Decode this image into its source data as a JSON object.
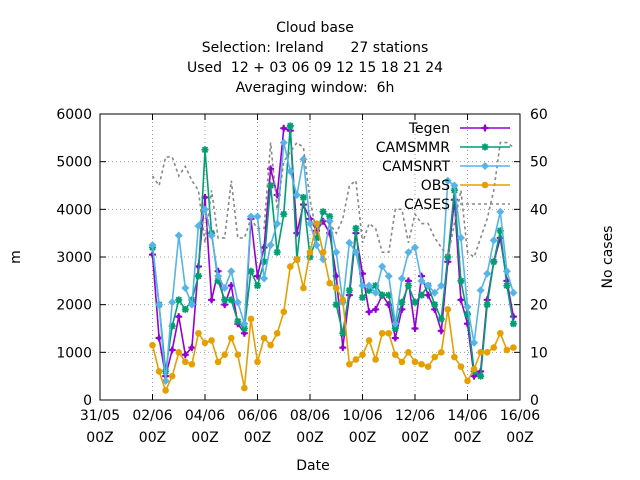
{
  "chart_data": {
    "type": "line",
    "title_lines": [
      "Cloud base",
      "Selection: Ireland      27 stations",
      "Used  12 + 03 06 09 12 15 18 21 24",
      "Averaging window:  6h"
    ],
    "xlabel": "Date",
    "ylabel": "m",
    "y2label": "No cases",
    "ylim": [
      0,
      6000
    ],
    "y2lim": [
      0,
      60
    ],
    "yticks": [
      0,
      1000,
      2000,
      3000,
      4000,
      5000,
      6000
    ],
    "y2ticks": [
      0,
      10,
      20,
      30,
      40,
      50,
      60
    ],
    "xlim": [
      "2021-05-31T00",
      "2021-06-16T00"
    ],
    "xticks": [
      {
        "date": "2021-05-31T00",
        "line1": "31/05",
        "line2": "00Z"
      },
      {
        "date": "2021-06-02T00",
        "line1": "02/06",
        "line2": "00Z"
      },
      {
        "date": "2021-06-04T00",
        "line1": "04/06",
        "line2": "00Z"
      },
      {
        "date": "2021-06-06T00",
        "line1": "06/06",
        "line2": "00Z"
      },
      {
        "date": "2021-06-08T00",
        "line1": "08/06",
        "line2": "00Z"
      },
      {
        "date": "2021-06-10T00",
        "line1": "10/06",
        "line2": "00Z"
      },
      {
        "date": "2021-06-12T00",
        "line1": "12/06",
        "line2": "00Z"
      },
      {
        "date": "2021-06-14T00",
        "line1": "14/06",
        "line2": "00Z"
      },
      {
        "date": "2021-06-16T00",
        "line1": "16/06",
        "line2": "00Z"
      }
    ],
    "grid": true,
    "legend_position": "top-right",
    "x": [
      "2021-06-02T00",
      "2021-06-02T06",
      "2021-06-02T12",
      "2021-06-02T18",
      "2021-06-03T00",
      "2021-06-03T06",
      "2021-06-03T12",
      "2021-06-03T18",
      "2021-06-04T00",
      "2021-06-04T06",
      "2021-06-04T12",
      "2021-06-04T18",
      "2021-06-05T00",
      "2021-06-05T06",
      "2021-06-05T12",
      "2021-06-05T18",
      "2021-06-06T00",
      "2021-06-06T06",
      "2021-06-06T12",
      "2021-06-06T18",
      "2021-06-07T00",
      "2021-06-07T06",
      "2021-06-07T12",
      "2021-06-07T18",
      "2021-06-08T00",
      "2021-06-08T06",
      "2021-06-08T12",
      "2021-06-08T18",
      "2021-06-09T00",
      "2021-06-09T06",
      "2021-06-09T12",
      "2021-06-09T18",
      "2021-06-10T00",
      "2021-06-10T06",
      "2021-06-10T12",
      "2021-06-10T18",
      "2021-06-11T00",
      "2021-06-11T06",
      "2021-06-11T12",
      "2021-06-11T18",
      "2021-06-12T00",
      "2021-06-12T06",
      "2021-06-12T12",
      "2021-06-12T18",
      "2021-06-13T00",
      "2021-06-13T06",
      "2021-06-13T12",
      "2021-06-13T18",
      "2021-06-14T00",
      "2021-06-14T06",
      "2021-06-14T12",
      "2021-06-14T18",
      "2021-06-15T00",
      "2021-06-15T06",
      "2021-06-15T12",
      "2021-06-15T18"
    ],
    "series": [
      {
        "name": "Tegen",
        "axis": "y1",
        "color": "#9400d3",
        "marker": "plus",
        "values": [
          3050,
          1300,
          500,
          1050,
          1750,
          950,
          1100,
          2800,
          4250,
          2100,
          2700,
          2000,
          2400,
          1600,
          1400,
          3800,
          2600,
          3200,
          4850,
          4300,
          5700,
          5650,
          3500,
          4100,
          3800,
          3550,
          3750,
          3500,
          2600,
          1100,
          2200,
          3500,
          2650,
          1850,
          1900,
          2200,
          2000,
          1300,
          1900,
          2500,
          1500,
          2600,
          2200,
          1900,
          1450,
          2900,
          4200,
          2100,
          1600,
          500,
          600,
          2100,
          2900,
          3400,
          2500,
          1750
        ]
      },
      {
        "name": "CAMSMMR",
        "axis": "y1",
        "color": "#009e73",
        "marker": "star",
        "values": [
          3200,
          2000,
          600,
          1550,
          2100,
          1900,
          2100,
          2600,
          5250,
          3500,
          2500,
          2100,
          2100,
          1650,
          1500,
          2700,
          2400,
          2900,
          4500,
          3100,
          3900,
          5750,
          2950,
          4250,
          3000,
          3400,
          3950,
          3850,
          2000,
          1400,
          2300,
          3600,
          2150,
          2300,
          2400,
          2200,
          2200,
          1500,
          2050,
          2400,
          2050,
          2200,
          2400,
          2000,
          1700,
          3000,
          4400,
          2500,
          1800,
          600,
          500,
          2000,
          2900,
          3550,
          2400,
          1600
        ]
      },
      {
        "name": "CAMSNRT",
        "axis": "y1",
        "color": "#56b4e9",
        "marker": "diamond",
        "values": [
          3250,
          2000,
          400,
          2050,
          3450,
          2350,
          2000,
          3650,
          4000,
          3450,
          2600,
          2350,
          2700,
          2050,
          1600,
          3850,
          3850,
          2550,
          3250,
          3700,
          5400,
          4800,
          4300,
          5050,
          3700,
          3250,
          2950,
          3750,
          3100,
          2050,
          3300,
          3100,
          2400,
          2400,
          2250,
          2800,
          2600,
          1600,
          2550,
          3100,
          3200,
          2500,
          2400,
          2250,
          2400,
          4600,
          4500,
          3400,
          1950,
          1200,
          2300,
          2650,
          3350,
          3950,
          2700,
          2250
        ]
      },
      {
        "name": "OBS",
        "axis": "y1",
        "color": "#e69f00",
        "marker": "circle",
        "values": [
          1150,
          600,
          200,
          500,
          1000,
          800,
          750,
          1400,
          1200,
          1250,
          800,
          950,
          1300,
          950,
          250,
          1700,
          800,
          1300,
          1150,
          1400,
          1850,
          2800,
          2950,
          2350,
          3100,
          3700,
          3100,
          2450,
          2350,
          2100,
          750,
          850,
          950,
          1250,
          850,
          1400,
          1400,
          950,
          800,
          1000,
          800,
          750,
          700,
          900,
          1000,
          1900,
          900,
          700,
          400,
          650,
          1000,
          1000,
          1100,
          1400,
          1050,
          1100
        ]
      },
      {
        "name": "CASES",
        "axis": "y2",
        "color": "#888888",
        "marker": "none",
        "dash": true,
        "values": [
          47,
          45,
          51,
          51,
          47,
          49,
          46,
          44,
          33,
          44,
          34,
          34,
          46,
          34,
          34,
          38,
          36,
          36,
          54,
          40,
          50,
          52,
          54,
          53,
          42,
          35,
          38,
          37,
          35,
          38,
          45,
          46,
          33,
          37,
          36,
          31,
          31,
          40,
          40,
          33,
          39,
          37,
          37,
          34,
          32,
          30,
          37,
          44,
          31,
          30,
          34,
          38,
          44,
          54,
          54,
          53
        ]
      }
    ]
  }
}
